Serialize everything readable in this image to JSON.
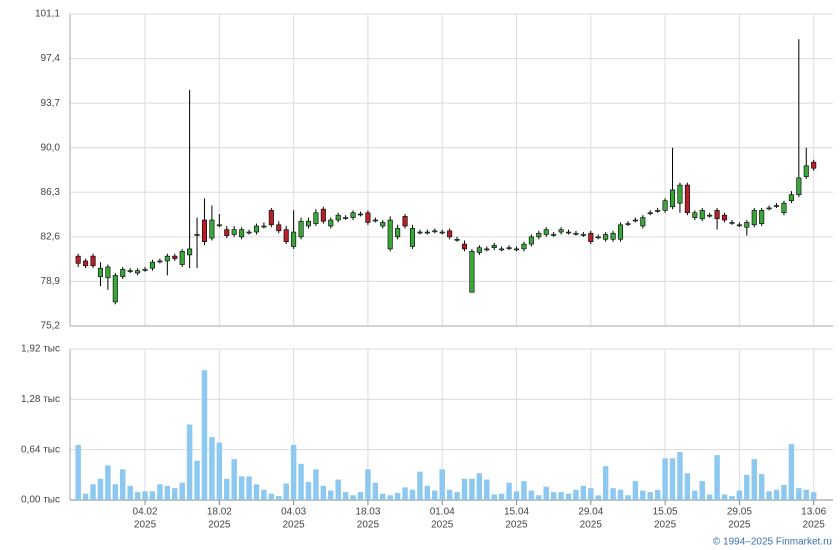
{
  "chart_data": {
    "type": "candlestick",
    "open": [
      81.0,
      80.6,
      81.0,
      79.3,
      79.2,
      77.2,
      79.3,
      79.8,
      79.6,
      79.9,
      80.0,
      80.6,
      80.6,
      81.0,
      80.3,
      81.1,
      82.8,
      84.0,
      82.5,
      83.6,
      83.2,
      82.8,
      82.6,
      83.0,
      83.0,
      83.5,
      84.8,
      83.6,
      83.2,
      81.8,
      82.6,
      83.5,
      83.7,
      84.9,
      83.5,
      84.0,
      84.2,
      84.2,
      84.5,
      84.6,
      84.0,
      83.5,
      81.6,
      82.6,
      84.3,
      81.8,
      83.0,
      83.0,
      83.1,
      83.0,
      83.1,
      82.4,
      82.0,
      78.0,
      81.3,
      81.6,
      81.7,
      81.6,
      81.7,
      81.6,
      81.6,
      82.0,
      82.6,
      82.8,
      82.8,
      83.0,
      83.0,
      82.9,
      82.8,
      82.9,
      82.6,
      82.4,
      82.4,
      82.4,
      83.7,
      84.0,
      83.5,
      84.6,
      84.8,
      84.8,
      85.1,
      85.4,
      86.9,
      84.2,
      84.1,
      84.4,
      84.8,
      84.4,
      83.8,
      83.6,
      83.4,
      83.6,
      83.7,
      85.0,
      85.2,
      84.6,
      85.6,
      86.1,
      87.6,
      88.8
    ],
    "high": [
      81.2,
      80.8,
      81.2,
      80.5,
      80.3,
      79.6,
      80.1,
      80.0,
      80.0,
      80.1,
      80.7,
      80.8,
      81.2,
      81.2,
      81.6,
      94.8,
      84.2,
      85.8,
      85.2,
      84.5,
      83.5,
      83.5,
      83.4,
      83.2,
      83.7,
      83.8,
      85.0,
      83.9,
      83.5,
      84.8,
      84.2,
      84.2,
      84.9,
      85.1,
      84.2,
      84.6,
      84.4,
      84.8,
      84.7,
      84.8,
      84.2,
      84.0,
      84.3,
      83.6,
      84.5,
      83.6,
      83.2,
      83.2,
      83.3,
      83.2,
      83.3,
      82.6,
      82.3,
      81.6,
      81.9,
      81.8,
      82.1,
      81.8,
      81.9,
      81.8,
      82.2,
      82.8,
      83.1,
      83.4,
      83.0,
      83.4,
      83.2,
      83.1,
      83.0,
      83.1,
      82.8,
      83.0,
      83.1,
      83.8,
      83.9,
      84.2,
      84.4,
      84.8,
      85.0,
      85.8,
      90.0,
      87.1,
      87.1,
      84.8,
      85.0,
      84.6,
      85.0,
      84.6,
      84.0,
      83.8,
      84.0,
      85.0,
      85.0,
      85.2,
      85.4,
      85.6,
      86.4,
      99.0,
      90.0,
      89.0
    ],
    "low": [
      80.1,
      80.0,
      80.0,
      78.5,
      78.2,
      77.0,
      79.1,
      79.6,
      79.4,
      79.7,
      79.8,
      80.4,
      79.4,
      80.6,
      80.1,
      80.0,
      80.0,
      81.9,
      82.3,
      83.4,
      82.5,
      82.6,
      82.4,
      82.8,
      82.8,
      83.3,
      83.4,
      82.9,
      82.0,
      81.6,
      82.4,
      83.3,
      83.5,
      83.7,
      83.3,
      83.8,
      84.0,
      84.0,
      84.3,
      83.6,
      83.8,
      83.3,
      81.4,
      82.4,
      83.3,
      81.6,
      82.8,
      82.8,
      82.9,
      82.8,
      82.4,
      82.2,
      81.4,
      78.0,
      81.1,
      81.4,
      81.5,
      81.4,
      81.5,
      81.4,
      81.4,
      81.8,
      82.4,
      82.6,
      82.6,
      82.8,
      82.8,
      82.7,
      82.6,
      82.0,
      82.4,
      82.2,
      82.2,
      82.2,
      83.5,
      83.8,
      83.3,
      84.4,
      84.6,
      84.6,
      84.9,
      84.6,
      84.4,
      84.0,
      83.9,
      84.2,
      83.2,
      83.8,
      83.6,
      83.4,
      82.7,
      83.4,
      83.5,
      84.8,
      85.0,
      84.4,
      85.4,
      85.9,
      87.4,
      88.1
    ],
    "close": [
      80.4,
      80.2,
      80.2,
      80.0,
      80.1,
      79.4,
      79.9,
      79.8,
      79.8,
      79.9,
      80.5,
      80.6,
      81.0,
      80.8,
      81.4,
      81.6,
      82.8,
      82.2,
      84.0,
      83.6,
      82.7,
      83.2,
      83.2,
      83.0,
      83.5,
      83.5,
      83.6,
      83.1,
      82.2,
      83.0,
      83.9,
      83.9,
      84.6,
      83.9,
      84.0,
      84.4,
      84.2,
      84.6,
      84.5,
      83.8,
      84.0,
      83.8,
      84.0,
      83.3,
      83.5,
      83.3,
      83.0,
      83.0,
      83.1,
      83.0,
      82.6,
      82.4,
      81.6,
      81.4,
      81.7,
      81.6,
      81.9,
      81.6,
      81.7,
      81.6,
      82.0,
      82.6,
      82.9,
      83.2,
      82.8,
      83.2,
      83.0,
      82.9,
      82.8,
      82.2,
      82.6,
      82.8,
      82.9,
      83.6,
      83.7,
      84.0,
      84.2,
      84.6,
      84.8,
      85.6,
      86.5,
      86.9,
      84.6,
      84.6,
      84.8,
      84.4,
      84.1,
      84.0,
      83.8,
      83.6,
      83.8,
      84.8,
      84.8,
      85.0,
      85.2,
      85.4,
      86.1,
      87.5,
      88.5,
      88.3
    ],
    "volume": [
      0.7,
      0.08,
      0.2,
      0.27,
      0.44,
      0.2,
      0.39,
      0.18,
      0.1,
      0.11,
      0.11,
      0.2,
      0.18,
      0.15,
      0.22,
      0.96,
      0.5,
      1.65,
      0.8,
      0.73,
      0.27,
      0.52,
      0.3,
      0.3,
      0.2,
      0.13,
      0.08,
      0.05,
      0.21,
      0.7,
      0.46,
      0.23,
      0.39,
      0.18,
      0.12,
      0.26,
      0.1,
      0.06,
      0.1,
      0.39,
      0.22,
      0.08,
      0.06,
      0.09,
      0.16,
      0.13,
      0.36,
      0.18,
      0.12,
      0.39,
      0.13,
      0.1,
      0.27,
      0.27,
      0.34,
      0.26,
      0.07,
      0.08,
      0.22,
      0.11,
      0.24,
      0.12,
      0.06,
      0.17,
      0.1,
      0.1,
      0.08,
      0.13,
      0.18,
      0.15,
      0.06,
      0.43,
      0.15,
      0.13,
      0.06,
      0.24,
      0.12,
      0.1,
      0.13,
      0.53,
      0.53,
      0.61,
      0.34,
      0.12,
      0.24,
      0.07,
      0.57,
      0.07,
      0.05,
      0.12,
      0.32,
      0.52,
      0.33,
      0.11,
      0.13,
      0.19,
      0.71,
      0.15,
      0.13,
      0.1
    ],
    "up_color": "#3aa53a",
    "down_color": "#b3202a",
    "volume_color": "#8cc8f0",
    "xlim": [
      -1.1,
      101.6
    ],
    "ylim": [
      75.2,
      101.1
    ],
    "yticks": [
      {
        "value": 75.2,
        "label": "75,2"
      },
      {
        "value": 78.9,
        "label": "78,9"
      },
      {
        "value": 82.6,
        "label": "82,6"
      },
      {
        "value": 86.3,
        "label": "86,3"
      },
      {
        "value": 90.0,
        "label": "90,0"
      },
      {
        "value": 93.7,
        "label": "93,7"
      },
      {
        "value": 97.4,
        "label": "97,4"
      },
      {
        "value": 101.1,
        "label": "101,1"
      }
    ],
    "volume_ylim": [
      0,
      1.92
    ],
    "volume_yticks": [
      {
        "value": 0,
        "label": "0,00 тыс"
      },
      {
        "value": 0.64,
        "label": "0,64 тыс"
      },
      {
        "value": 1.28,
        "label": "1,28 тыс"
      },
      {
        "value": 1.92,
        "label": "1,92 тыс"
      }
    ],
    "xticks": [
      {
        "value": 9,
        "label": "04.02",
        "year": "2025"
      },
      {
        "value": 19,
        "label": "18.02",
        "year": "2025"
      },
      {
        "value": 29,
        "label": "04.03",
        "year": "2025"
      },
      {
        "value": 39,
        "label": "18.03",
        "year": "2025"
      },
      {
        "value": 49,
        "label": "01.04",
        "year": "2025"
      },
      {
        "value": 59,
        "label": "15.04",
        "year": "2025"
      },
      {
        "value": 69,
        "label": "29.04",
        "year": "2025"
      },
      {
        "value": 79,
        "label": "15.05",
        "year": "2025"
      },
      {
        "value": 89,
        "label": "29.05",
        "year": "2025"
      },
      {
        "value": 99,
        "label": "13.06",
        "year": "2025"
      }
    ],
    "grid": true,
    "copyright": "© 1994–2025 Finmarket.ru"
  }
}
